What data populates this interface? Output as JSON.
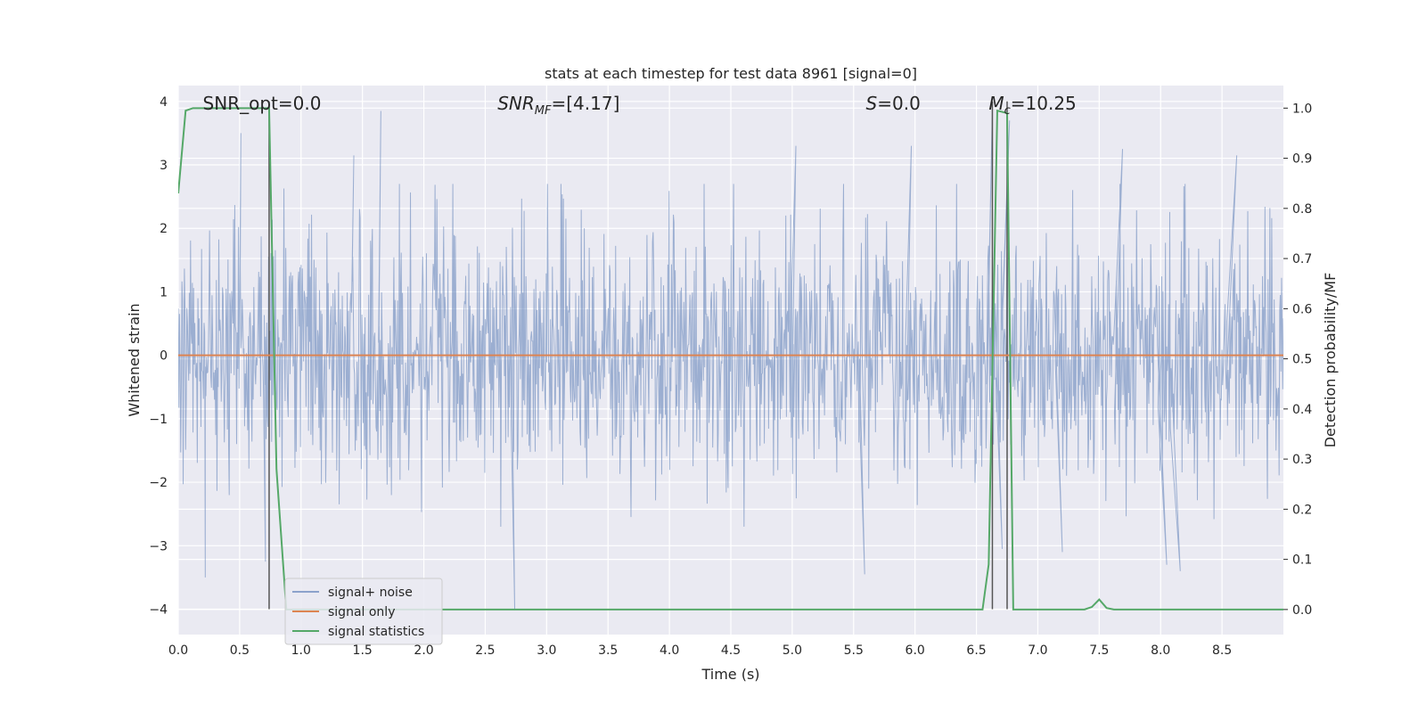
{
  "chart_data": {
    "type": "line",
    "title": "stats at each timestep for test data 8961 [signal=0]",
    "xlabel": "Time (s)",
    "ylabel": "Whitened strain",
    "y2label": "Detection probability/MF",
    "xlim": [
      0.0,
      9.0
    ],
    "ylim": [
      -4.4,
      4.25
    ],
    "y2lim": [
      -0.05,
      1.045
    ],
    "xticks": [
      "0.0",
      "0.5",
      "1.0",
      "1.5",
      "2.0",
      "2.5",
      "3.0",
      "3.5",
      "4.0",
      "4.5",
      "5.0",
      "5.5",
      "6.0",
      "6.5",
      "7.0",
      "7.5",
      "8.0",
      "8.5"
    ],
    "yticks": [
      "−4",
      "−3",
      "−2",
      "−1",
      "0",
      "1",
      "2",
      "3",
      "4"
    ],
    "y2ticks": [
      "0.0",
      "0.1",
      "0.2",
      "0.3",
      "0.4",
      "0.5",
      "0.6",
      "0.7",
      "0.8",
      "0.9",
      "1.0"
    ],
    "grid": true,
    "legend_position": "lower-left",
    "annotations": [
      {
        "text": "SNR_opt=0.0",
        "x": 0.2
      },
      {
        "text": "SNR",
        "sub": "MF",
        "suffix": "=[4.17]",
        "x": 2.6
      },
      {
        "text": "S",
        "suffix": "=0.0",
        "x": 5.6
      },
      {
        "text": "M",
        "sub": "c",
        "suffix": "=10.25",
        "x": 6.6
      }
    ],
    "series": [
      {
        "name": "signal+ noise",
        "color": "#4c72b0",
        "kind": "noise",
        "amplitude_std": 1.0,
        "spikes": [
          {
            "x": 0.22,
            "y": -3.5
          },
          {
            "x": 0.51,
            "y": 3.5
          },
          {
            "x": 0.71,
            "y": -3.25
          },
          {
            "x": 1.43,
            "y": 3.15
          },
          {
            "x": 1.65,
            "y": 3.85
          },
          {
            "x": 2.74,
            "y": -4.0
          },
          {
            "x": 5.03,
            "y": 3.3
          },
          {
            "x": 5.59,
            "y": -3.45
          },
          {
            "x": 5.97,
            "y": 3.3
          },
          {
            "x": 6.63,
            "y": 3.9
          },
          {
            "x": 6.71,
            "y": -3.05
          },
          {
            "x": 6.77,
            "y": 3.7
          },
          {
            "x": 7.2,
            "y": -3.1
          },
          {
            "x": 7.69,
            "y": 3.25
          },
          {
            "x": 8.05,
            "y": -3.3
          },
          {
            "x": 8.16,
            "y": -3.4
          },
          {
            "x": 8.62,
            "y": 3.15
          }
        ]
      },
      {
        "name": "signal only",
        "color": "#dd8452",
        "x": [
          0.0,
          9.0
        ],
        "y": [
          0.0,
          0.0
        ]
      },
      {
        "name": "signal statistics",
        "color": "#55a868",
        "axis": "right",
        "x": [
          0.0,
          0.06,
          0.12,
          0.7,
          0.74,
          0.8,
          0.88,
          0.93,
          6.55,
          6.6,
          6.67,
          6.75,
          6.8,
          7.38,
          7.44,
          7.5,
          7.56,
          7.62,
          9.0
        ],
        "y": [
          0.83,
          0.995,
          1.0,
          1.0,
          1.0,
          0.28,
          0.0,
          0.0,
          0.0,
          0.09,
          0.995,
          0.99,
          0.0,
          0.0,
          0.005,
          0.02,
          0.003,
          0.0,
          0.0
        ]
      }
    ],
    "vlines": [
      {
        "x": 0.74,
        "y": [
          -4.0,
          4.0
        ],
        "color": "#555555"
      },
      {
        "x": 6.63,
        "y": [
          -4.0,
          4.0
        ],
        "color": "#555555"
      },
      {
        "x": 6.75,
        "y": [
          -4.0,
          4.0
        ],
        "color": "#555555"
      }
    ]
  }
}
